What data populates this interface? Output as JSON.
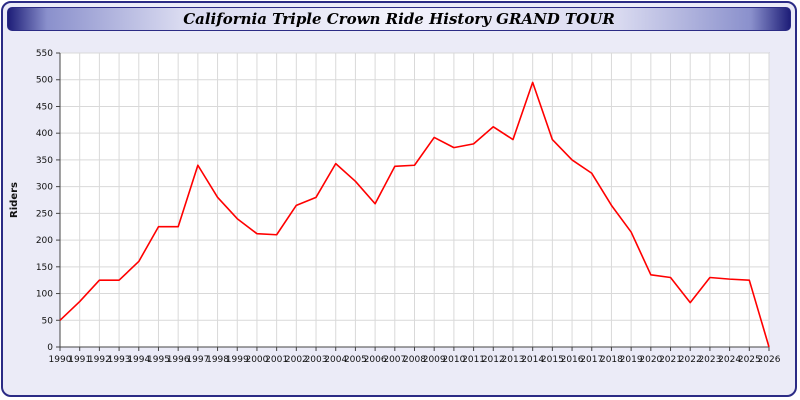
{
  "title": "California Triple Crown Ride History GRAND TOUR",
  "chart_data": {
    "type": "line",
    "x": [
      1990,
      1991,
      1992,
      1993,
      1994,
      1995,
      1996,
      1997,
      1998,
      1999,
      2000,
      2001,
      2002,
      2003,
      2004,
      2005,
      2006,
      2007,
      2008,
      2009,
      2010,
      2011,
      2012,
      2013,
      2014,
      2015,
      2016,
      2017,
      2018,
      2019,
      2020,
      2021,
      2022,
      2023,
      2024,
      2025,
      2026
    ],
    "series": [
      {
        "name": "Riders",
        "values": [
          50,
          85,
          125,
          125,
          160,
          225,
          225,
          340,
          280,
          240,
          212,
          210,
          265,
          280,
          343,
          310,
          268,
          338,
          340,
          392,
          373,
          380,
          412,
          388,
          495,
          388,
          350,
          325,
          265,
          215,
          135,
          130,
          83,
          130,
          127,
          125,
          0
        ]
      }
    ],
    "xlabel": "",
    "ylabel": "Riders",
    "ylim": [
      0,
      550
    ],
    "ytick_step": 50,
    "grid": true,
    "legend": "none",
    "line_color": "#ff0000"
  },
  "colors": {
    "frame_background": "#ebebf7",
    "frame_border": "#2b2b85",
    "plot_background": "#ffffff",
    "gridline": "#d9d9d9",
    "line": "#ff0000"
  }
}
